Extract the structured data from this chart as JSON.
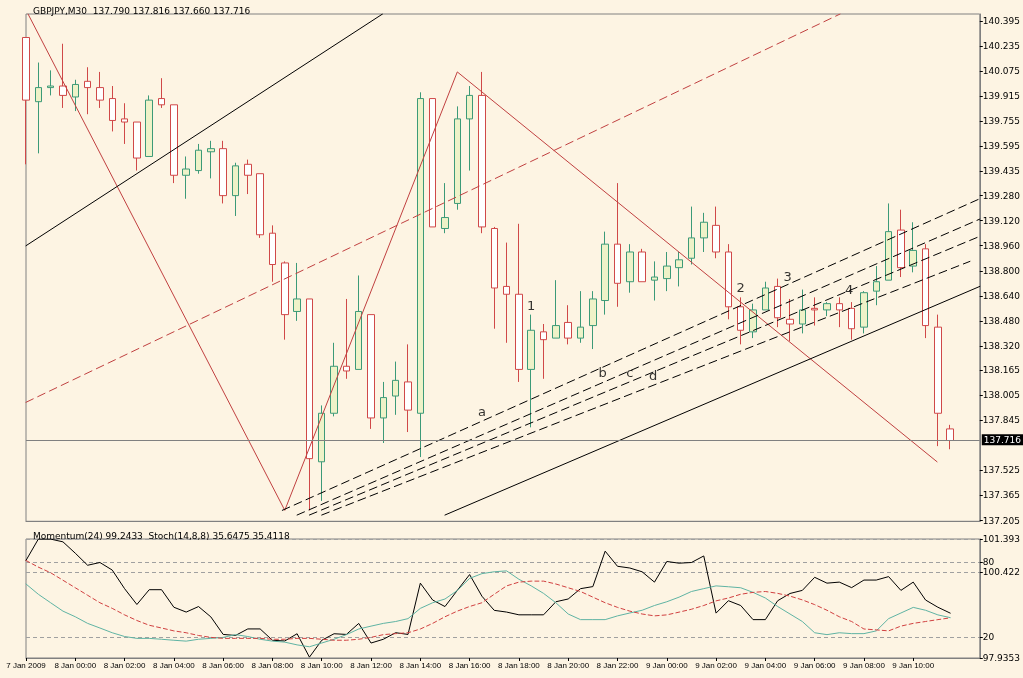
{
  "chart_data": [
    {
      "type": "candlestick",
      "title": "GBPJPY,M30  137.790 137.816 137.660 137.716",
      "x": [
        "2009-01-07T22:00",
        "2009-01-07T22:30",
        "2009-01-07T23:00",
        "2009-01-07T23:30",
        "2009-01-08T00:00",
        "2009-01-08T00:30",
        "2009-01-08T01:00",
        "2009-01-08T01:30",
        "2009-01-08T02:00",
        "2009-01-08T02:30",
        "2009-01-08T03:00",
        "2009-01-08T03:30",
        "2009-01-08T04:00",
        "2009-01-08T04:30",
        "2009-01-08T05:00",
        "2009-01-08T05:30",
        "2009-01-08T06:00",
        "2009-01-08T06:30",
        "2009-01-08T07:00",
        "2009-01-08T07:30",
        "2009-01-08T08:00",
        "2009-01-08T08:30",
        "2009-01-08T09:00",
        "2009-01-08T09:30",
        "2009-01-08T10:00",
        "2009-01-08T10:30",
        "2009-01-08T11:00",
        "2009-01-08T11:30",
        "2009-01-08T12:00",
        "2009-01-08T12:30",
        "2009-01-08T13:00",
        "2009-01-08T13:30",
        "2009-01-08T14:00",
        "2009-01-08T14:30",
        "2009-01-08T15:00",
        "2009-01-08T15:30",
        "2009-01-08T16:00",
        "2009-01-08T16:30",
        "2009-01-08T17:00",
        "2009-01-08T17:30",
        "2009-01-08T18:00",
        "2009-01-08T18:30",
        "2009-01-08T19:00",
        "2009-01-08T19:30",
        "2009-01-08T20:00",
        "2009-01-08T20:30",
        "2009-01-08T21:00",
        "2009-01-08T21:30",
        "2009-01-08T22:00",
        "2009-01-08T22:30",
        "2009-01-08T23:00",
        "2009-01-08T23:30",
        "2009-01-09T00:00",
        "2009-01-09T00:30",
        "2009-01-09T01:00",
        "2009-01-09T01:30",
        "2009-01-09T02:00",
        "2009-01-09T02:30",
        "2009-01-09T03:00",
        "2009-01-09T03:30",
        "2009-01-09T04:00",
        "2009-01-09T04:30",
        "2009-01-09T05:00",
        "2009-01-09T05:30",
        "2009-01-09T06:00",
        "2009-01-09T06:30",
        "2009-01-09T07:00",
        "2009-01-09T07:30",
        "2009-01-09T08:00",
        "2009-01-09T08:30",
        "2009-01-09T09:00",
        "2009-01-09T09:30",
        "2009-01-09T10:00",
        "2009-01-09T10:30",
        "2009-01-09T11:00",
        "2009-01-09T11:30"
      ],
      "ohlc": [
        [
          140.29,
          140.29,
          139.48,
          139.89
        ],
        [
          139.88,
          140.13,
          139.55,
          139.97
        ],
        [
          139.97,
          140.08,
          139.92,
          139.98
        ],
        [
          139.98,
          140.25,
          139.84,
          139.92
        ],
        [
          139.91,
          140.02,
          139.82,
          139.99
        ],
        [
          140.01,
          140.1,
          139.8,
          139.97
        ],
        [
          139.97,
          140.07,
          139.84,
          139.89
        ],
        [
          139.9,
          139.98,
          139.69,
          139.76
        ],
        [
          139.77,
          139.87,
          139.61,
          139.75
        ],
        [
          139.75,
          139.75,
          139.44,
          139.52
        ],
        [
          139.53,
          139.92,
          139.53,
          139.89
        ],
        [
          139.9,
          140.03,
          139.84,
          139.86
        ],
        [
          139.86,
          139.86,
          139.36,
          139.41
        ],
        [
          139.41,
          139.53,
          139.26,
          139.45
        ],
        [
          139.44,
          139.61,
          139.42,
          139.57
        ],
        [
          139.56,
          139.63,
          139.39,
          139.58
        ],
        [
          139.58,
          139.63,
          139.23,
          139.28
        ],
        [
          139.28,
          139.49,
          139.15,
          139.47
        ],
        [
          139.48,
          139.51,
          139.29,
          139.41
        ],
        [
          139.42,
          139.42,
          139.01,
          139.03
        ],
        [
          139.04,
          139.09,
          138.73,
          138.84
        ],
        [
          138.85,
          138.86,
          138.36,
          138.52
        ],
        [
          138.54,
          138.85,
          138.48,
          138.62
        ],
        [
          138.62,
          138.62,
          137.27,
          137.6
        ],
        [
          137.58,
          137.94,
          137.33,
          137.89
        ],
        [
          137.89,
          138.34,
          137.87,
          138.19
        ],
        [
          138.19,
          138.62,
          138.11,
          138.16
        ],
        [
          138.17,
          138.77,
          138.17,
          138.54
        ],
        [
          138.52,
          138.52,
          137.79,
          137.86
        ],
        [
          137.86,
          138.09,
          137.7,
          137.99
        ],
        [
          138.0,
          138.22,
          137.88,
          138.1
        ],
        [
          138.09,
          138.33,
          137.77,
          137.91
        ],
        [
          137.89,
          139.94,
          137.61,
          139.9
        ],
        [
          139.9,
          139.9,
          139.08,
          139.08
        ],
        [
          139.07,
          139.36,
          139.04,
          139.14
        ],
        [
          139.23,
          139.85,
          139.19,
          139.77
        ],
        [
          139.77,
          139.98,
          139.44,
          139.92
        ],
        [
          139.92,
          140.07,
          139.04,
          139.08
        ],
        [
          139.07,
          139.08,
          138.43,
          138.69
        ],
        [
          138.7,
          138.98,
          138.34,
          138.65
        ],
        [
          138.65,
          139.1,
          138.09,
          138.17
        ],
        [
          138.17,
          138.52,
          137.8,
          138.42
        ],
        [
          138.41,
          138.46,
          138.11,
          138.36
        ],
        [
          138.37,
          138.74,
          138.37,
          138.45
        ],
        [
          138.47,
          138.58,
          138.33,
          138.37
        ],
        [
          138.37,
          138.67,
          138.34,
          138.44
        ],
        [
          138.45,
          138.67,
          138.3,
          138.62
        ],
        [
          138.61,
          139.05,
          138.52,
          138.97
        ],
        [
          138.97,
          139.36,
          138.57,
          138.72
        ],
        [
          138.73,
          138.97,
          138.66,
          138.92
        ],
        [
          138.92,
          138.94,
          138.73,
          138.73
        ],
        [
          138.74,
          138.86,
          138.61,
          138.76
        ],
        [
          138.75,
          138.92,
          138.67,
          138.83
        ],
        [
          138.82,
          138.92,
          138.7,
          138.87
        ],
        [
          138.88,
          139.21,
          138.84,
          139.01
        ],
        [
          139.01,
          139.17,
          138.92,
          139.11
        ],
        [
          139.09,
          139.21,
          138.88,
          138.92
        ],
        [
          138.92,
          138.97,
          138.49,
          138.57
        ],
        [
          138.57,
          138.63,
          138.33,
          138.42
        ],
        [
          138.41,
          138.59,
          138.37,
          138.55
        ],
        [
          138.55,
          138.73,
          138.55,
          138.69
        ],
        [
          138.7,
          138.75,
          138.44,
          138.5
        ],
        [
          138.49,
          138.62,
          138.35,
          138.46
        ],
        [
          138.46,
          138.68,
          138.4,
          138.55
        ],
        [
          138.56,
          138.63,
          138.45,
          138.55
        ],
        [
          138.55,
          138.6,
          138.51,
          138.59
        ],
        [
          138.59,
          138.63,
          138.44,
          138.55
        ],
        [
          138.56,
          138.6,
          138.36,
          138.43
        ],
        [
          138.44,
          138.67,
          138.4,
          138.66
        ],
        [
          138.67,
          138.83,
          138.58,
          138.73
        ],
        [
          138.74,
          139.23,
          138.74,
          139.05
        ],
        [
          139.06,
          139.19,
          138.76,
          138.82
        ],
        [
          138.83,
          139.11,
          138.79,
          138.93
        ],
        [
          138.94,
          138.97,
          138.37,
          138.45
        ],
        [
          138.44,
          138.52,
          137.68,
          137.89
        ],
        [
          137.79,
          137.816,
          137.66,
          137.716
        ]
      ],
      "colors": [
        "#d04848",
        "#3c9a78",
        "#3c9a78",
        "#d04848",
        "#3c9a78",
        "#d04848",
        "#d04848",
        "#d04848",
        "#d04848",
        "#d04848",
        "#3c9a78",
        "#d04848",
        "#d04848",
        "#3c9a78",
        "#3c9a78",
        "#3c9a78",
        "#d04848",
        "#3c9a78",
        "#d04848",
        "#d04848",
        "#d04848",
        "#d04848",
        "#3c9a78",
        "#d04848",
        "#3c9a78",
        "#3c9a78",
        "#d04848",
        "#3c9a78",
        "#d04848",
        "#3c9a78",
        "#3c9a78",
        "#d04848",
        "#3c9a78",
        "#d04848",
        "#3c9a78",
        "#3c9a78",
        "#3c9a78",
        "#d04848",
        "#d04848",
        "#d04848",
        "#d04848",
        "#3c9a78",
        "#d04848",
        "#3c9a78",
        "#d04848",
        "#3c9a78",
        "#3c9a78",
        "#3c9a78",
        "#d04848",
        "#3c9a78",
        "#d04848",
        "#3c9a78",
        "#3c9a78",
        "#3c9a78",
        "#3c9a78",
        "#3c9a78",
        "#d04848",
        "#d04848",
        "#d04848",
        "#3c9a78",
        "#3c9a78",
        "#d04848",
        "#d04848",
        "#3c9a78",
        "#d04848",
        "#3c9a78",
        "#d04848",
        "#d04848",
        "#3c9a78",
        "#3c9a78",
        "#3c9a78",
        "#d04848",
        "#3c9a78",
        "#d04848",
        "#d04848",
        "#d04848"
      ],
      "series": [
        {
          "type": "line",
          "x": [
            "2009-01-07T22:05",
            "2009-01-08T08:30",
            "2009-01-08T15:30",
            "2009-01-09T10:58"
          ],
          "values": [
            140.44,
            137.27,
            140.07,
            137.58
          ],
          "color": "#c04040",
          "line_style": "solid"
        },
        {
          "type": "line",
          "x": [
            "2009-01-07T22:00",
            "2009-01-08T12:28"
          ],
          "values": [
            138.96,
            140.44
          ],
          "color": "#000000",
          "line_style": "solid"
        },
        {
          "type": "line",
          "x": [
            "2009-01-07T22:00",
            "2009-01-09T07:02"
          ],
          "values": [
            137.96,
            140.44
          ],
          "color": "#c04040",
          "line_style": "dashed"
        },
        {
          "type": "line",
          "x": [
            "2009-01-08T15:00",
            "2009-01-09T12:42"
          ],
          "values": [
            137.24,
            138.7
          ],
          "color": "#000000",
          "line_style": "solid"
        },
        {
          "type": "line",
          "x": [
            "2009-01-08T08:24",
            "2009-01-09T12:42"
          ],
          "values": [
            137.27,
            139.26
          ],
          "color": "#000000",
          "line_style": "dashed"
        },
        {
          "type": "line",
          "x": [
            "2009-01-08T09:00",
            "2009-01-09T12:42"
          ],
          "values": [
            137.24,
            139.13
          ],
          "color": "#000000",
          "line_style": "dashed"
        },
        {
          "type": "line",
          "x": [
            "2009-01-08T09:30",
            "2009-01-09T12:42"
          ],
          "values": [
            137.24,
            139.02
          ],
          "color": "#000000",
          "line_style": "dashed"
        },
        {
          "type": "line",
          "x": [
            "2009-01-08T10:00",
            "2009-01-09T12:18"
          ],
          "values": [
            137.24,
            138.86
          ],
          "color": "#000000",
          "line_style": "dashed"
        }
      ],
      "annotations": [
        {
          "text": "1",
          "x": "2009-01-08T18:30",
          "y": 138.52
        },
        {
          "text": "2",
          "x": "2009-01-09T03:00",
          "y": 138.63
        },
        {
          "text": "3",
          "x": "2009-01-09T04:54",
          "y": 138.7
        },
        {
          "text": "4",
          "x": "2009-01-09T07:24",
          "y": 138.62
        },
        {
          "text": "a",
          "x": "2009-01-08T16:30",
          "y": 137.84
        },
        {
          "text": "b",
          "x": "2009-01-08T21:24",
          "y": 138.09
        },
        {
          "text": "c",
          "x": "2009-01-08T22:30",
          "y": 138.09
        },
        {
          "text": "d",
          "x": "2009-01-08T23:27",
          "y": 138.07
        }
      ],
      "ref_lines": [
        {
          "axis": "y",
          "value": 137.716,
          "label": "137.716",
          "color": "#808080"
        }
      ],
      "marker": "none",
      "tick_labels": "y",
      "xlim": [
        "2009-01-07T22:00",
        "2009-01-09T12:42"
      ],
      "ylim": [
        137.2,
        140.44
      ],
      "yticks": [
        140.395,
        140.235,
        140.075,
        139.915,
        139.755,
        139.595,
        139.435,
        {
          "value": 139.28,
          "label": "139.280"
        },
        {
          "value": 139.12,
          "label": "139.120"
        },
        {
          "value": 138.96,
          "label": "138.960"
        },
        {
          "value": 138.8,
          "label": "138.800"
        },
        {
          "value": 138.64,
          "label": "138.640"
        },
        {
          "value": 138.48,
          "label": "138.480"
        },
        {
          "value": 138.32,
          "label": "138.320"
        },
        138.165,
        138.005,
        137.845,
        137.525,
        137.365,
        137.205
      ]
    },
    {
      "type": "line",
      "title": "Momentum(24) 99.2433  Stoch(14,8,8) 35.6475 35.4118",
      "x": [
        "2009-01-07T22:00",
        "2009-01-07T22:30",
        "2009-01-07T23:00",
        "2009-01-07T23:30",
        "2009-01-08T00:00",
        "2009-01-08T00:30",
        "2009-01-08T01:00",
        "2009-01-08T01:30",
        "2009-01-08T02:00",
        "2009-01-08T02:30",
        "2009-01-08T03:00",
        "2009-01-08T03:30",
        "2009-01-08T04:00",
        "2009-01-08T04:30",
        "2009-01-08T05:00",
        "2009-01-08T05:30",
        "2009-01-08T06:00",
        "2009-01-08T06:30",
        "2009-01-08T07:00",
        "2009-01-08T07:30",
        "2009-01-08T08:00",
        "2009-01-08T08:30",
        "2009-01-08T09:00",
        "2009-01-08T09:30",
        "2009-01-08T10:00",
        "2009-01-08T10:30",
        "2009-01-08T11:00",
        "2009-01-08T11:30",
        "2009-01-08T12:00",
        "2009-01-08T12:30",
        "2009-01-08T13:00",
        "2009-01-08T13:30",
        "2009-01-08T14:00",
        "2009-01-08T14:30",
        "2009-01-08T15:00",
        "2009-01-08T15:30",
        "2009-01-08T16:00",
        "2009-01-08T16:30",
        "2009-01-08T17:00",
        "2009-01-08T17:30",
        "2009-01-08T18:00",
        "2009-01-08T18:30",
        "2009-01-08T19:00",
        "2009-01-08T19:30",
        "2009-01-08T20:00",
        "2009-01-08T20:30",
        "2009-01-08T21:00",
        "2009-01-08T21:30",
        "2009-01-08T22:00",
        "2009-01-08T22:30",
        "2009-01-08T23:00",
        "2009-01-08T23:30",
        "2009-01-09T00:00",
        "2009-01-09T00:30",
        "2009-01-09T01:00",
        "2009-01-09T01:30",
        "2009-01-09T02:00",
        "2009-01-09T02:30",
        "2009-01-09T03:00",
        "2009-01-09T03:30",
        "2009-01-09T04:00",
        "2009-01-09T04:30",
        "2009-01-09T05:00",
        "2009-01-09T05:30",
        "2009-01-09T06:00",
        "2009-01-09T06:30",
        "2009-01-09T07:00",
        "2009-01-09T07:30",
        "2009-01-09T08:00",
        "2009-01-09T08:30",
        "2009-01-09T09:00",
        "2009-01-09T09:30",
        "2009-01-09T10:00",
        "2009-01-09T10:30",
        "2009-01-09T11:00",
        "2009-01-09T11:30"
      ],
      "series": [
        {
          "color": "#000000",
          "line_style": "solid",
          "values": [
            100.77,
            101.39,
            101.39,
            101.31,
            100.98,
            100.63,
            100.71,
            100.49,
            99.95,
            99.49,
            99.92,
            99.92,
            99.41,
            99.27,
            99.43,
            99.13,
            98.62,
            98.59,
            98.78,
            98.78,
            98.45,
            98.43,
            98.64,
            97.96,
            98.45,
            98.64,
            98.62,
            98.94,
            98.37,
            98.48,
            98.67,
            98.62,
            100.11,
            99.62,
            99.43,
            99.9,
            100.36,
            99.73,
            99.32,
            99.27,
            99.19,
            99.19,
            99.19,
            99.57,
            99.65,
            99.95,
            100.01,
            101.04,
            100.6,
            100.55,
            100.44,
            100.14,
            100.74,
            100.69,
            100.71,
            100.9,
            99.24,
            99.6,
            99.46,
            99.05,
            99.05,
            99.6,
            99.81,
            99.9,
            100.28,
            100.11,
            100.14,
            99.98,
            100.2,
            100.2,
            100.3,
            99.9,
            100.14,
            99.62,
            99.41,
            99.24
          ]
        },
        {
          "color": "#5fb3a3",
          "line_style": "solid",
          "axis": "y2",
          "values": [
            62.5,
            54.3,
            47.5,
            40.8,
            36.3,
            31.0,
            27.3,
            23.5,
            20.5,
            19.0,
            19.0,
            18.3,
            17.5,
            16.8,
            18.3,
            19.0,
            19.8,
            22.0,
            20.5,
            18.3,
            16.8,
            16.0,
            13.8,
            12.3,
            15.3,
            18.3,
            22.0,
            26.5,
            28.8,
            31.0,
            32.5,
            34.8,
            43.0,
            47.5,
            50.5,
            57.3,
            67.0,
            70.8,
            72.3,
            73.0,
            66.3,
            61.0,
            55.0,
            47.5,
            38.5,
            34.0,
            34.0,
            34.0,
            37.0,
            39.3,
            41.5,
            45.3,
            48.3,
            52.0,
            56.5,
            58.8,
            61.0,
            60.3,
            59.5,
            55.8,
            51.3,
            44.5,
            38.5,
            32.5,
            23.5,
            22.0,
            23.5,
            22.8,
            22.8,
            25.0,
            34.8,
            39.3,
            43.8,
            41.5,
            37.8,
            35.6
          ]
        },
        {
          "color": "#d04040",
          "line_style": "dotted",
          "axis": "y2",
          "values": [
            81.3,
            76.0,
            71.5,
            65.5,
            59.5,
            53.5,
            47.5,
            43.0,
            37.8,
            33.3,
            29.5,
            27.3,
            25.0,
            23.5,
            21.3,
            19.8,
            19.0,
            19.0,
            19.0,
            19.0,
            18.3,
            18.3,
            19.0,
            19.0,
            18.3,
            17.5,
            17.5,
            18.3,
            19.8,
            22.0,
            22.8,
            23.5,
            26.5,
            31.0,
            36.3,
            40.8,
            44.5,
            47.5,
            54.3,
            61.0,
            64.0,
            64.8,
            64.8,
            62.5,
            59.5,
            56.5,
            52.0,
            47.5,
            43.8,
            40.8,
            38.5,
            37.0,
            37.8,
            40.0,
            42.3,
            45.3,
            49.0,
            51.3,
            54.3,
            55.8,
            56.5,
            55.0,
            52.8,
            49.8,
            46.0,
            41.5,
            36.3,
            32.5,
            26.5,
            25.8,
            25.0,
            28.8,
            31.0,
            32.5,
            34.0,
            35.4
          ]
        }
      ],
      "grid": "y",
      "marker": "none",
      "xlim": [
        "2009-01-07T22:00",
        "2009-01-09T12:42"
      ],
      "xticks": [
        {
          "value": "2009-01-07T22:00",
          "label": "7 Jan 2009"
        },
        {
          "value": "2009-01-08T00:00",
          "label": "8 Jan 00:00"
        },
        {
          "value": "2009-01-08T02:00",
          "label": "8 Jan 02:00"
        },
        {
          "value": "2009-01-08T04:00",
          "label": "8 Jan 04:00"
        },
        {
          "value": "2009-01-08T06:00",
          "label": "8 Jan 06:00"
        },
        {
          "value": "2009-01-08T08:00",
          "label": "8 Jan 08:00"
        },
        {
          "value": "2009-01-08T10:00",
          "label": "8 Jan 10:00"
        },
        {
          "value": "2009-01-08T12:00",
          "label": "8 Jan 12:00"
        },
        {
          "value": "2009-01-08T14:00",
          "label": "8 Jan 14:00"
        },
        {
          "value": "2009-01-08T16:00",
          "label": "8 Jan 16:00"
        },
        {
          "value": "2009-01-08T18:00",
          "label": "8 Jan 18:00"
        },
        {
          "value": "2009-01-08T20:00",
          "label": "8 Jan 20:00"
        },
        {
          "value": "2009-01-08T22:00",
          "label": "8 Jan 22:00"
        },
        {
          "value": "2009-01-09T00:00",
          "label": "9 Jan 00:00"
        },
        {
          "value": "2009-01-09T02:00",
          "label": "9 Jan 02:00"
        },
        {
          "value": "2009-01-09T04:00",
          "label": "9 Jan 04:00"
        },
        {
          "value": "2009-01-09T06:00",
          "label": "9 Jan 06:00"
        },
        {
          "value": "2009-01-09T08:00",
          "label": "9 Jan 08:00"
        },
        {
          "value": "2009-01-09T10:00",
          "label": "9 Jan 10:00"
        }
      ],
      "ylim": [
        97.9353,
        101.393
      ],
      "yticks": [
        101.393,
        100.422,
        97.9353
      ],
      "y2lim": [
        3.3,
        98.5
      ],
      "y2ticks": [
        80,
        20
      ]
    }
  ]
}
